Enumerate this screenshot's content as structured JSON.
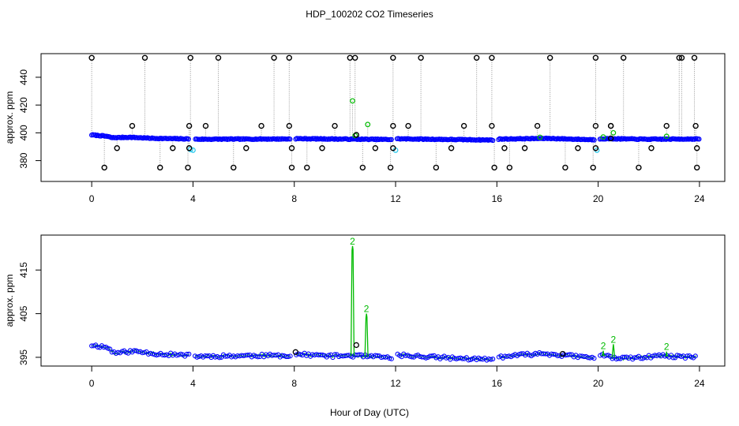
{
  "title": "HDP_100202  CO2 Timeseries",
  "xlabel": "Hour of Day (UTC)",
  "chart_data": [
    {
      "type": "scatter",
      "panel": "top",
      "xlabel": "",
      "ylabel": "approx. ppm",
      "xlim": [
        -2,
        25
      ],
      "ylim": [
        365,
        457
      ],
      "xticks": [
        0,
        4,
        8,
        12,
        16,
        20,
        24
      ],
      "yticks": [
        380,
        400,
        420,
        440
      ],
      "colors": {
        "black": "#000000",
        "blue": "#0000ff",
        "cyan": "#33ccee",
        "green": "#00bb00",
        "gray": "#999999"
      },
      "x_range": [
        0,
        24
      ],
      "baseline": [
        {
          "x": 0,
          "y": 398.5
        },
        {
          "x": 0.6,
          "y": 397.5
        },
        {
          "x": 0.8,
          "y": 396.5
        },
        {
          "x": 1.5,
          "y": 396.8
        },
        {
          "x": 2.5,
          "y": 396
        },
        {
          "x": 3.9,
          "y": 395.6
        },
        {
          "x": 4.2,
          "y": 395.4
        },
        {
          "x": 7.8,
          "y": 395.6
        },
        {
          "x": 8.1,
          "y": 395.8
        },
        {
          "x": 11.9,
          "y": 395.2
        },
        {
          "x": 12.1,
          "y": 395.7
        },
        {
          "x": 15.9,
          "y": 394.8
        },
        {
          "x": 16.1,
          "y": 395.5
        },
        {
          "x": 18,
          "y": 396
        },
        {
          "x": 19.9,
          "y": 395
        },
        {
          "x": 20.1,
          "y": 395.8
        },
        {
          "x": 22,
          "y": 395.4
        },
        {
          "x": 23.9,
          "y": 395.6
        }
      ],
      "gaps": [
        [
          3.85,
          4.05
        ],
        [
          7.85,
          8.05
        ],
        [
          11.85,
          12.05
        ],
        [
          15.85,
          16.05
        ],
        [
          19.85,
          20.05
        ]
      ],
      "spikes_high": [
        0,
        2.1,
        3.9,
        5.0,
        7.2,
        7.8,
        10.2,
        10.4,
        11.9,
        13.0,
        15.2,
        15.8,
        18.1,
        19.9,
        21.0,
        23.2,
        23.3,
        23.8
      ],
      "spikes_high_value": 454,
      "spikes_low": [
        0.5,
        2.7,
        3.8,
        5.6,
        7.9,
        8.5,
        10.7,
        11.8,
        13.6,
        15.9,
        16.5,
        18.7,
        19.8,
        21.6,
        23.9
      ],
      "spikes_low_value": 375,
      "black_mid_high": [
        1.6,
        3.85,
        4.5,
        6.7,
        7.8,
        9.6,
        11.9,
        12.5,
        14.7,
        15.8,
        17.6,
        19.9,
        20.5,
        22.7,
        23.85
      ],
      "black_mid_high_value": 405,
      "black_mid_low": [
        1.0,
        3.2,
        3.85,
        6.1,
        7.9,
        9.1,
        11.2,
        11.9,
        14.2,
        16.3,
        17.1,
        19.2,
        19.9,
        22.1,
        23.9
      ],
      "black_mid_low_value": 389,
      "cyan_points": [
        {
          "x": 3.9,
          "y": 388
        },
        {
          "x": 4.0,
          "y": 387.5
        },
        {
          "x": 12.0,
          "y": 387.5
        },
        {
          "x": 19.95,
          "y": 387.5
        }
      ],
      "green_points": [
        {
          "x": 10.3,
          "y": 423
        },
        {
          "x": 10.9,
          "y": 406
        },
        {
          "x": 10.4,
          "y": 398
        },
        {
          "x": 20.6,
          "y": 400
        },
        {
          "x": 20.2,
          "y": 397
        },
        {
          "x": 22.7,
          "y": 397.5
        },
        {
          "x": 17.7,
          "y": 396.8
        }
      ],
      "black_extra": [
        {
          "x": 10.45,
          "y": 398.5
        },
        {
          "x": 20.5,
          "y": 405
        },
        {
          "x": 20.5,
          "y": 396
        }
      ]
    },
    {
      "type": "line",
      "panel": "bottom",
      "xlabel": "Hour of Day (UTC)",
      "ylabel": "approx. ppm",
      "xlim": [
        -2,
        25
      ],
      "ylim": [
        393,
        423
      ],
      "xticks": [
        0,
        4,
        8,
        12,
        16,
        20,
        24
      ],
      "yticks": [
        395,
        405,
        415
      ],
      "colors": {
        "blue": "#0000ff",
        "green": "#00bb00",
        "black": "#000000"
      },
      "baseline": [
        {
          "x": 0,
          "y": 397.8
        },
        {
          "x": 0.6,
          "y": 397.3
        },
        {
          "x": 0.9,
          "y": 396
        },
        {
          "x": 1.7,
          "y": 396.4
        },
        {
          "x": 2.6,
          "y": 395.8
        },
        {
          "x": 3.9,
          "y": 395.4
        },
        {
          "x": 4.1,
          "y": 395.2
        },
        {
          "x": 6.5,
          "y": 395.4
        },
        {
          "x": 7.8,
          "y": 395.4
        },
        {
          "x": 8.1,
          "y": 395.7
        },
        {
          "x": 9.5,
          "y": 395.3
        },
        {
          "x": 10.2,
          "y": 395.4
        },
        {
          "x": 11.9,
          "y": 394.9
        },
        {
          "x": 12.1,
          "y": 395.5
        },
        {
          "x": 14,
          "y": 394.9
        },
        {
          "x": 15.9,
          "y": 394.4
        },
        {
          "x": 16.1,
          "y": 395.1
        },
        {
          "x": 17.8,
          "y": 395.9
        },
        {
          "x": 19.9,
          "y": 394.8
        },
        {
          "x": 20.1,
          "y": 395.4
        },
        {
          "x": 21.0,
          "y": 394.7
        },
        {
          "x": 22.5,
          "y": 395.3
        },
        {
          "x": 23.9,
          "y": 395
        }
      ],
      "gaps": [
        [
          3.85,
          4.05
        ],
        [
          7.85,
          8.05
        ],
        [
          11.85,
          12.05
        ],
        [
          15.85,
          16.05
        ],
        [
          19.85,
          20.05
        ]
      ],
      "green_spikes": [
        {
          "x": 10.3,
          "y": 420.5,
          "label": "2"
        },
        {
          "x": 10.85,
          "y": 405,
          "label": "2"
        },
        {
          "x": 20.6,
          "y": 398,
          "label": "2"
        },
        {
          "x": 20.2,
          "y": 396.5,
          "label": "2"
        },
        {
          "x": 22.7,
          "y": 396.3,
          "label": "2"
        }
      ],
      "black_points": [
        {
          "x": 10.45,
          "y": 397.8
        },
        {
          "x": 8.05,
          "y": 396.2
        },
        {
          "x": 18.6,
          "y": 395.8
        }
      ]
    }
  ]
}
